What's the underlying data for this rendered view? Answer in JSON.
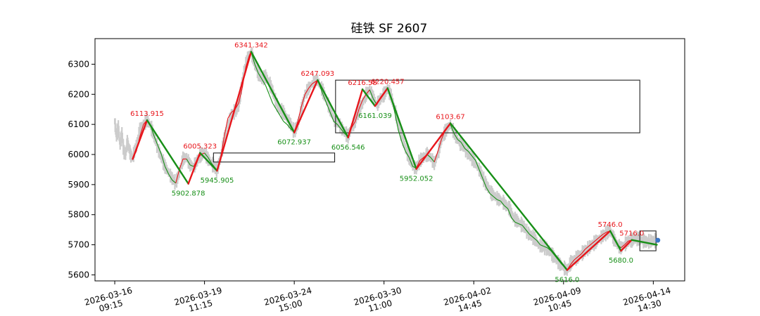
{
  "chart_data": {
    "type": "line",
    "title": "硅铁 SF 2607",
    "xlabel": "",
    "ylabel": "",
    "ylim": [
      5580,
      6385
    ],
    "yticks": [
      5600,
      5700,
      5800,
      5900,
      6000,
      6100,
      6200,
      6300
    ],
    "xticks": [
      {
        "label": [
          "2026-03-16",
          "09:15"
        ],
        "x": 0
      },
      {
        "label": [
          "2026-03-19",
          "11:15"
        ],
        "x": 100
      },
      {
        "label": [
          "2026-03-24",
          "15:00"
        ],
        "x": 200
      },
      {
        "label": [
          "2026-03-30",
          "11:00"
        ],
        "x": 300
      },
      {
        "label": [
          "2026-04-02",
          "14:45"
        ],
        "x": 400
      },
      {
        "label": [
          "2026-04-09",
          "10:45"
        ],
        "x": 500
      },
      {
        "label": [
          "2026-04-14",
          "14:30"
        ],
        "x": 600
      }
    ],
    "xlim": [
      -22,
      635
    ],
    "grid": false,
    "price_color": "#cccccc",
    "up_color": "#e8151b",
    "down_color": "#178f17",
    "price_path": [
      [
        0,
        6110
      ],
      [
        2,
        6060
      ],
      [
        4,
        6090
      ],
      [
        6,
        6030
      ],
      [
        8,
        6070
      ],
      [
        10,
        6010
      ],
      [
        12,
        6000
      ],
      [
        14,
        6040
      ],
      [
        16,
        6020
      ],
      [
        18,
        5995
      ],
      [
        20,
        5990
      ],
      [
        24,
        6030
      ],
      [
        28,
        6080
      ],
      [
        32,
        6100
      ],
      [
        36,
        6114
      ],
      [
        40,
        6095
      ],
      [
        44,
        6060
      ],
      [
        48,
        6020
      ],
      [
        52,
        5990
      ],
      [
        56,
        5960
      ],
      [
        60,
        5940
      ],
      [
        64,
        5920
      ],
      [
        68,
        5905
      ],
      [
        72,
        5940
      ],
      [
        76,
        5985
      ],
      [
        80,
        5990
      ],
      [
        84,
        5965
      ],
      [
        88,
        5960
      ],
      [
        92,
        5980
      ],
      [
        96,
        6000
      ],
      [
        100,
        6005
      ],
      [
        104,
        5985
      ],
      [
        108,
        5970
      ],
      [
        112,
        5955
      ],
      [
        114,
        5948
      ],
      [
        118,
        5990
      ],
      [
        122,
        6050
      ],
      [
        126,
        6100
      ],
      [
        130,
        6130
      ],
      [
        134,
        6145
      ],
      [
        138,
        6160
      ],
      [
        140,
        6200
      ],
      [
        144,
        6280
      ],
      [
        148,
        6320
      ],
      [
        152,
        6341
      ],
      [
        156,
        6300
      ],
      [
        160,
        6270
      ],
      [
        164,
        6250
      ],
      [
        168,
        6260
      ],
      [
        172,
        6240
      ],
      [
        176,
        6210
      ],
      [
        180,
        6170
      ],
      [
        184,
        6150
      ],
      [
        188,
        6140
      ],
      [
        192,
        6120
      ],
      [
        196,
        6100
      ],
      [
        200,
        6075
      ],
      [
        204,
        6100
      ],
      [
        208,
        6150
      ],
      [
        212,
        6200
      ],
      [
        216,
        6220
      ],
      [
        220,
        6235
      ],
      [
        226,
        6247
      ],
      [
        232,
        6210
      ],
      [
        236,
        6180
      ],
      [
        240,
        6150
      ],
      [
        244,
        6120
      ],
      [
        248,
        6110
      ],
      [
        252,
        6090
      ],
      [
        256,
        6075
      ],
      [
        260,
        6060
      ],
      [
        264,
        6090
      ],
      [
        268,
        6110
      ],
      [
        272,
        6150
      ],
      [
        276,
        6170
      ],
      [
        280,
        6200
      ],
      [
        284,
        6215
      ],
      [
        288,
        6190
      ],
      [
        292,
        6165
      ],
      [
        296,
        6185
      ],
      [
        300,
        6200
      ],
      [
        304,
        6218
      ],
      [
        308,
        6195
      ],
      [
        312,
        6150
      ],
      [
        316,
        6100
      ],
      [
        320,
        6060
      ],
      [
        324,
        6020
      ],
      [
        328,
        5990
      ],
      [
        332,
        5960
      ],
      [
        336,
        5955
      ],
      [
        340,
        5980
      ],
      [
        344,
        5990
      ],
      [
        348,
        6000
      ],
      [
        352,
        5990
      ],
      [
        356,
        5970
      ],
      [
        360,
        6000
      ],
      [
        364,
        6050
      ],
      [
        368,
        6075
      ],
      [
        374,
        6100
      ],
      [
        380,
        6060
      ],
      [
        384,
        6040
      ],
      [
        388,
        6030
      ],
      [
        392,
        6010
      ],
      [
        396,
        5995
      ],
      [
        400,
        5980
      ],
      [
        404,
        5960
      ],
      [
        408,
        5940
      ],
      [
        412,
        5910
      ],
      [
        416,
        5890
      ],
      [
        420,
        5870
      ],
      [
        424,
        5860
      ],
      [
        428,
        5850
      ],
      [
        432,
        5845
      ],
      [
        436,
        5830
      ],
      [
        440,
        5820
      ],
      [
        444,
        5790
      ],
      [
        448,
        5780
      ],
      [
        452,
        5770
      ],
      [
        456,
        5760
      ],
      [
        460,
        5740
      ],
      [
        464,
        5730
      ],
      [
        468,
        5720
      ],
      [
        472,
        5700
      ],
      [
        476,
        5695
      ],
      [
        480,
        5690
      ],
      [
        484,
        5680
      ],
      [
        488,
        5665
      ],
      [
        492,
        5650
      ],
      [
        496,
        5635
      ],
      [
        500,
        5625
      ],
      [
        504,
        5616
      ],
      [
        508,
        5640
      ],
      [
        512,
        5650
      ],
      [
        516,
        5660
      ],
      [
        520,
        5670
      ],
      [
        524,
        5680
      ],
      [
        528,
        5690
      ],
      [
        532,
        5700
      ],
      [
        536,
        5710
      ],
      [
        540,
        5720
      ],
      [
        544,
        5730
      ],
      [
        548,
        5740
      ],
      [
        552,
        5746
      ],
      [
        556,
        5720
      ],
      [
        560,
        5700
      ],
      [
        564,
        5690
      ],
      [
        568,
        5700
      ],
      [
        572,
        5712
      ],
      [
        576,
        5716
      ],
      [
        580,
        5720
      ],
      [
        584,
        5720
      ],
      [
        588,
        5715
      ],
      [
        592,
        5710
      ],
      [
        596,
        5712
      ],
      [
        600,
        5713
      ],
      [
        604,
        5715
      ]
    ],
    "thin_line": [
      [
        20,
        5990
      ],
      [
        24,
        6010
      ],
      [
        28,
        6060
      ],
      [
        32,
        6100
      ],
      [
        36,
        6114
      ],
      [
        40,
        6095
      ],
      [
        44,
        6060
      ],
      [
        48,
        6030
      ],
      [
        52,
        6000
      ],
      [
        56,
        5960
      ],
      [
        60,
        5935
      ],
      [
        64,
        5915
      ],
      [
        68,
        5905
      ],
      [
        72,
        5950
      ],
      [
        76,
        5985
      ],
      [
        80,
        5985
      ],
      [
        84,
        5965
      ],
      [
        88,
        5960
      ],
      [
        92,
        5985
      ],
      [
        96,
        6000
      ],
      [
        100,
        6005
      ],
      [
        104,
        5990
      ],
      [
        108,
        5970
      ],
      [
        112,
        5955
      ],
      [
        114,
        5948
      ],
      [
        118,
        5990
      ],
      [
        122,
        6060
      ],
      [
        126,
        6120
      ],
      [
        130,
        6140
      ],
      [
        134,
        6150
      ],
      [
        138,
        6170
      ],
      [
        142,
        6220
      ],
      [
        146,
        6290
      ],
      [
        150,
        6330
      ],
      [
        152,
        6341
      ],
      [
        156,
        6300
      ],
      [
        160,
        6270
      ],
      [
        164,
        6250
      ],
      [
        168,
        6230
      ],
      [
        172,
        6200
      ],
      [
        176,
        6170
      ],
      [
        180,
        6150
      ],
      [
        184,
        6130
      ],
      [
        188,
        6110
      ],
      [
        192,
        6100
      ],
      [
        196,
        6085
      ],
      [
        200,
        6075
      ],
      [
        204,
        6110
      ],
      [
        208,
        6160
      ],
      [
        212,
        6200
      ],
      [
        216,
        6220
      ],
      [
        220,
        6235
      ],
      [
        226,
        6247
      ],
      [
        232,
        6200
      ],
      [
        236,
        6170
      ],
      [
        240,
        6140
      ],
      [
        244,
        6110
      ],
      [
        248,
        6100
      ],
      [
        252,
        6085
      ],
      [
        256,
        6070
      ],
      [
        260,
        6060
      ],
      [
        264,
        6090
      ],
      [
        268,
        6110
      ],
      [
        272,
        6150
      ],
      [
        276,
        6180
      ],
      [
        280,
        6200
      ],
      [
        284,
        6215
      ],
      [
        288,
        6185
      ],
      [
        292,
        6165
      ],
      [
        296,
        6190
      ],
      [
        300,
        6205
      ],
      [
        304,
        6218
      ],
      [
        308,
        6190
      ],
      [
        312,
        6140
      ],
      [
        316,
        6080
      ],
      [
        320,
        6040
      ],
      [
        324,
        6010
      ],
      [
        328,
        5990
      ],
      [
        332,
        5960
      ],
      [
        336,
        5955
      ],
      [
        340,
        5980
      ],
      [
        344,
        5990
      ],
      [
        348,
        6000
      ],
      [
        352,
        5990
      ],
      [
        356,
        5975
      ],
      [
        360,
        6010
      ],
      [
        364,
        6050
      ],
      [
        368,
        6080
      ],
      [
        374,
        6100
      ],
      [
        378,
        6070
      ],
      [
        382,
        6050
      ],
      [
        386,
        6040
      ],
      [
        390,
        6020
      ],
      [
        394,
        6010
      ],
      [
        398,
        5995
      ],
      [
        402,
        5980
      ],
      [
        406,
        5950
      ],
      [
        410,
        5920
      ],
      [
        414,
        5890
      ],
      [
        418,
        5870
      ],
      [
        422,
        5860
      ],
      [
        426,
        5850
      ],
      [
        430,
        5845
      ],
      [
        434,
        5830
      ],
      [
        438,
        5820
      ],
      [
        442,
        5790
      ],
      [
        446,
        5775
      ],
      [
        450,
        5770
      ],
      [
        454,
        5765
      ],
      [
        458,
        5750
      ],
      [
        462,
        5735
      ],
      [
        466,
        5725
      ],
      [
        470,
        5715
      ],
      [
        474,
        5700
      ],
      [
        478,
        5695
      ],
      [
        482,
        5690
      ],
      [
        486,
        5680
      ],
      [
        490,
        5665
      ],
      [
        494,
        5650
      ],
      [
        498,
        5635
      ],
      [
        502,
        5625
      ],
      [
        504,
        5616
      ],
      [
        508,
        5635
      ],
      [
        512,
        5650
      ],
      [
        516,
        5660
      ],
      [
        520,
        5670
      ],
      [
        524,
        5685
      ],
      [
        528,
        5695
      ],
      [
        532,
        5705
      ],
      [
        536,
        5715
      ],
      [
        540,
        5725
      ],
      [
        544,
        5735
      ],
      [
        548,
        5742
      ],
      [
        552,
        5746
      ],
      [
        556,
        5720
      ],
      [
        560,
        5700
      ],
      [
        564,
        5690
      ],
      [
        568,
        5700
      ],
      [
        572,
        5712
      ],
      [
        576,
        5716
      ],
      [
        580,
        5715
      ],
      [
        584,
        5712
      ],
      [
        588,
        5710
      ]
    ],
    "pivots": [
      {
        "x": 20,
        "y": 5985,
        "label": ""
      },
      {
        "x": 36,
        "y": 6113.915,
        "label": "6113.915"
      },
      {
        "x": 82,
        "y": 5902.878,
        "label": "5902.878"
      },
      {
        "x": 95,
        "y": 6005.323,
        "label": "6005.323"
      },
      {
        "x": 114,
        "y": 5945.905,
        "label": "5945.905"
      },
      {
        "x": 152,
        "y": 6341.342,
        "label": "6341.342"
      },
      {
        "x": 200,
        "y": 6072.937,
        "label": "6072.937"
      },
      {
        "x": 226,
        "y": 6247.093,
        "label": "6247.093"
      },
      {
        "x": 260,
        "y": 6056.546,
        "label": "6056.546"
      },
      {
        "x": 276,
        "y": 6216.58,
        "label": "6216.58"
      },
      {
        "x": 290,
        "y": 6161.039,
        "label": "6161.039"
      },
      {
        "x": 304,
        "y": 6220.457,
        "label": "6220.457"
      },
      {
        "x": 336,
        "y": 5952.052,
        "label": "5952.052"
      },
      {
        "x": 374,
        "y": 6103.67,
        "label": "6103.67"
      },
      {
        "x": 504,
        "y": 5616.0,
        "label": "5616.0"
      },
      {
        "x": 552,
        "y": 5746.0,
        "label": "5746.0"
      },
      {
        "x": 564,
        "y": 5680.0,
        "label": "5680.0"
      },
      {
        "x": 576,
        "y": 5716.0,
        "label": "5716.0"
      },
      {
        "x": 604,
        "y": 5700.0,
        "label": ""
      }
    ],
    "boxes": [
      {
        "x0": 110,
        "x1": 245,
        "y0": 5975,
        "y1": 6005
      },
      {
        "x0": 246,
        "x1": 585,
        "y0": 6072,
        "y1": 6247
      },
      {
        "x0": 585,
        "x1": 603,
        "y0": 5680,
        "y1": 5746
      }
    ],
    "last_point": {
      "x": 605,
      "y": 5715,
      "color": "#3a75c4"
    }
  }
}
